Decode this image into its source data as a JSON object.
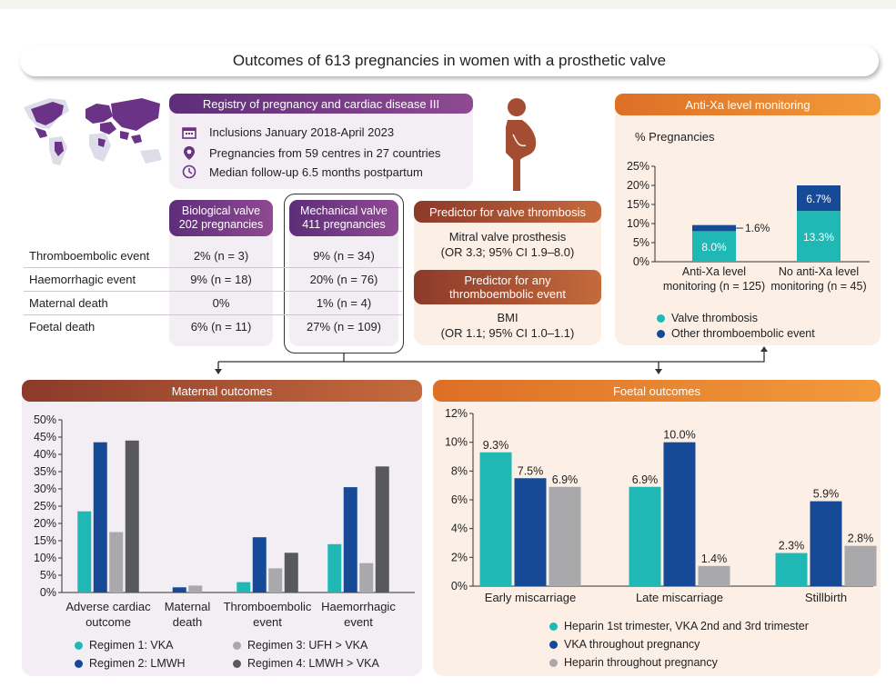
{
  "title": "Outcomes of 613 pregnancies in women with a prosthetic valve",
  "colors": {
    "teal": "#1fb8b4",
    "navy": "#174a96",
    "lightgray": "#a9a9ab",
    "darkgray": "#58595b",
    "purple": "#6b3385",
    "orange": "#e8812f",
    "brown": "#a44d33"
  },
  "registry": {
    "header": "Registry of pregnancy and cardiac disease III",
    "items": [
      {
        "icon": "calendar-icon",
        "text": "Inclusions January 2018-April 2023"
      },
      {
        "icon": "location-pin-icon",
        "text": "Pregnancies from 59 centres in 27 countries"
      },
      {
        "icon": "clock-icon",
        "text": "Median follow-up 6.5 months postpartum"
      }
    ]
  },
  "valves": {
    "biological": {
      "name": "Biological valve",
      "count": "202 pregnancies"
    },
    "mechanical": {
      "name": "Mechanical valve",
      "count": "411 pregnancies"
    }
  },
  "outcome_rows": [
    {
      "label": "Thromboembolic event",
      "bio": "2% (n = 3)",
      "mech": "9% (n = 34)"
    },
    {
      "label": "Haemorrhagic event",
      "bio": "9% (n = 18)",
      "mech": "20% (n = 76)"
    },
    {
      "label": "Maternal death",
      "bio": "0%",
      "mech": "1% (n = 4)"
    },
    {
      "label": "Foetal death",
      "bio": "6% (n = 11)",
      "mech": "27% (n = 109)"
    }
  ],
  "predictors": {
    "valve_thrombosis": {
      "header": "Predictor for valve thrombosis",
      "line1": "Mitral valve prosthesis",
      "line2": "(OR 3.3; 95% CI 1.9–8.0)"
    },
    "any_te": {
      "header_line1": "Predictor for any",
      "header_line2": "thromboembolic event",
      "line1": "BMI",
      "line2": "(OR 1.1; 95% CI 1.0–1.1)"
    }
  },
  "chart_data": [
    {
      "id": "anti-xa",
      "type": "bar",
      "title": "Anti-Xa level monitoring",
      "ylabel": "% Pregnancies",
      "stacked": true,
      "ylim": [
        0,
        25
      ],
      "yticks": [
        "0%",
        "5%",
        "10%",
        "15%",
        "20%",
        "25%"
      ],
      "categories": [
        [
          "Anti-Xa level",
          "monitoring (n = 125)"
        ],
        [
          "No anti-Xa level",
          "monitoring (n = 45)"
        ]
      ],
      "series": [
        {
          "name": "Valve thrombosis",
          "color": "#1fb8b4",
          "values": [
            8.0,
            13.3
          ],
          "labels": [
            "8.0%",
            "13.3%"
          ]
        },
        {
          "name": "Other thromboembolic event",
          "color": "#174a96",
          "values": [
            1.6,
            6.7
          ],
          "labels": [
            "1.6%",
            "6.7%"
          ]
        }
      ]
    },
    {
      "id": "maternal",
      "type": "bar",
      "title": "Maternal outcomes",
      "ylim": [
        0,
        50
      ],
      "yticks": [
        "0%",
        "5%",
        "10%",
        "15%",
        "20%",
        "25%",
        "30%",
        "35%",
        "40%",
        "45%",
        "50%"
      ],
      "categories": [
        [
          "Adverse cardiac",
          "outcome"
        ],
        [
          "Maternal",
          "death"
        ],
        [
          "Thromboembolic",
          "event"
        ],
        [
          "Haemorrhagic",
          "event"
        ]
      ],
      "series": [
        {
          "name": "Regimen 1: VKA",
          "color": "#1fb8b4",
          "values": [
            23.5,
            0,
            3,
            14
          ]
        },
        {
          "name": "Regimen 2: LMWH",
          "color": "#174a96",
          "values": [
            43.5,
            1.5,
            16,
            30.5
          ]
        },
        {
          "name": "Regimen 3: UFH > VKA",
          "color": "#a9a9ab",
          "values": [
            17.5,
            2,
            7,
            8.5
          ]
        },
        {
          "name": "Regimen 4: LMWH > VKA",
          "color": "#58595b",
          "values": [
            44,
            0,
            11.5,
            36.5
          ]
        }
      ]
    },
    {
      "id": "foetal",
      "type": "bar",
      "title": "Foetal outcomes",
      "ylim": [
        0,
        12
      ],
      "yticks": [
        "0%",
        "2%",
        "4%",
        "6%",
        "8%",
        "10%",
        "12%"
      ],
      "categories": [
        "Early miscarriage",
        "Late miscarriage",
        "Stillbirth"
      ],
      "series": [
        {
          "name": "Heparin 1st trimester, VKA 2nd and 3rd trimester",
          "color": "#1fb8b4",
          "values": [
            9.3,
            6.9,
            2.3
          ],
          "labels": [
            "9.3%",
            "6.9%",
            "2.3%"
          ]
        },
        {
          "name": "VKA throughout pregnancy",
          "color": "#174a96",
          "values": [
            7.5,
            10.0,
            5.9
          ],
          "labels": [
            "7.5%",
            "10.0%",
            "5.9%"
          ]
        },
        {
          "name": "Heparin throughout pregnancy",
          "color": "#a9a9ab",
          "values": [
            6.9,
            1.4,
            2.8
          ],
          "labels": [
            "6.9%",
            "1.4%",
            "2.8%"
          ]
        }
      ]
    }
  ]
}
